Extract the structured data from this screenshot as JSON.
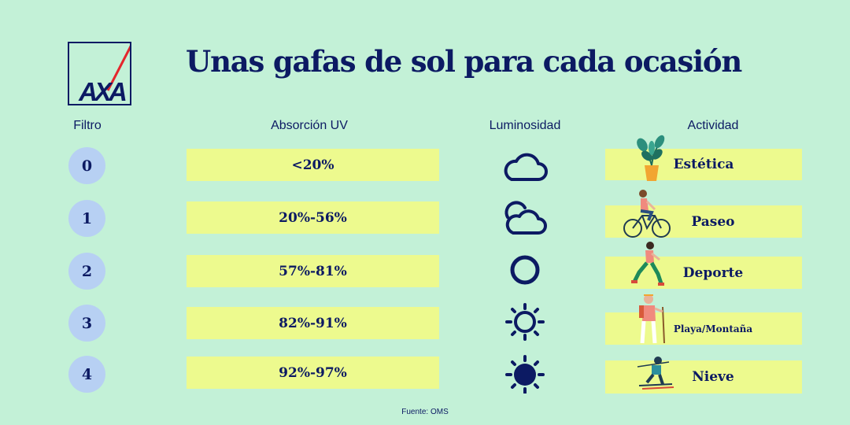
{
  "brand": {
    "logo_text": "AXA"
  },
  "title": "Unas gafas de sol para cada ocasión",
  "headers": {
    "filtro": "Filtro",
    "absorcion": "Absorción UV",
    "luminosidad": "Luminosidad",
    "actividad": "Actividad"
  },
  "rows": [
    {
      "filtro": "0",
      "absorcion": "<20%",
      "luminosidad_icon": "cloud-icon",
      "actividad": "Estética",
      "actividad_icon": "potted-plant-icon"
    },
    {
      "filtro": "1",
      "absorcion": "20%-56%",
      "luminosidad_icon": "sun-behind-cloud-icon",
      "actividad": "Paseo",
      "actividad_icon": "cyclist-icon"
    },
    {
      "filtro": "2",
      "absorcion": "57%-81%",
      "luminosidad_icon": "sun-outline-icon",
      "actividad": "Deporte",
      "actividad_icon": "runner-icon"
    },
    {
      "filtro": "3",
      "absorcion": "82%-91%",
      "luminosidad_icon": "sun-rays-icon",
      "actividad": "Playa/Montaña",
      "actividad_icon": "hiker-icon"
    },
    {
      "filtro": "4",
      "absorcion": "92%-97%",
      "luminosidad_icon": "sun-filled-icon",
      "actividad": "Nieve",
      "actividad_icon": "skier-icon"
    }
  ],
  "source": "Fuente: OMS",
  "colors": {
    "background": "#c3f1d7",
    "navy": "#0c1a63",
    "yellow_box": "#edfa8e",
    "circle": "#b7d0f3",
    "logo_red": "#e4262c"
  }
}
